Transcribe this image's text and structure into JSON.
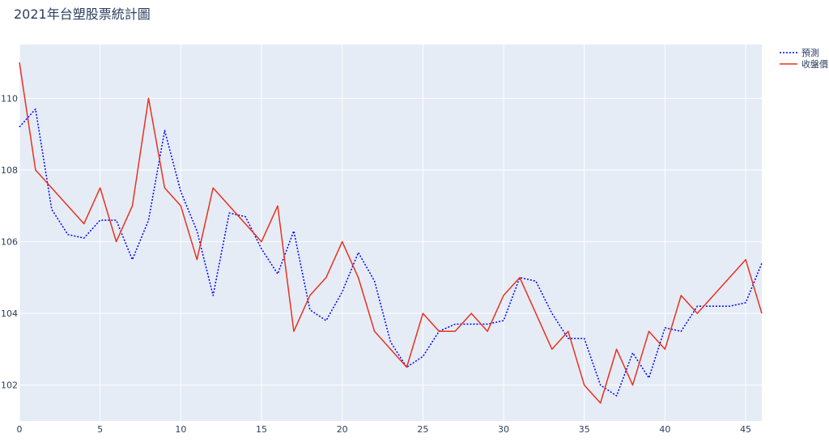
{
  "chart_data": {
    "type": "line",
    "title": "2021年台塑股票統計圖",
    "xlabel": "",
    "ylabel": "",
    "xlim": [
      0,
      46
    ],
    "ylim": [
      101,
      111.5
    ],
    "x_ticks": [
      0,
      5,
      10,
      15,
      20,
      25,
      30,
      35,
      40,
      45
    ],
    "y_ticks": [
      102,
      104,
      106,
      108,
      110
    ],
    "grid": true,
    "legend_position": "top-right",
    "series": [
      {
        "name": "預測",
        "color": "#0000ff",
        "line_style": "dotted",
        "x": [
          0,
          1,
          2,
          3,
          4,
          5,
          6,
          7,
          8,
          9,
          10,
          11,
          12,
          13,
          14,
          15,
          16,
          17,
          18,
          19,
          20,
          21,
          22,
          23,
          24,
          25,
          26,
          27,
          28,
          29,
          30,
          31,
          32,
          33,
          34,
          35,
          36,
          37,
          38,
          39,
          40,
          41,
          42,
          43,
          44,
          45,
          46
        ],
        "values": [
          109.2,
          109.7,
          106.9,
          106.2,
          106.1,
          106.6,
          106.6,
          105.5,
          106.6,
          109.1,
          107.4,
          106.3,
          104.5,
          106.8,
          106.7,
          105.8,
          105.1,
          106.3,
          104.1,
          103.8,
          104.6,
          105.7,
          104.9,
          103.2,
          102.5,
          102.8,
          103.5,
          103.7,
          103.7,
          103.7,
          103.8,
          105.0,
          104.9,
          104.0,
          103.3,
          103.3,
          102.0,
          101.7,
          102.9,
          102.2,
          103.6,
          103.5,
          104.2,
          104.2,
          104.2,
          104.3,
          105.4
        ]
      },
      {
        "name": "收盤價",
        "color": "#e8321e",
        "line_style": "solid",
        "x": [
          0,
          1,
          4,
          5,
          6,
          7,
          8,
          9,
          10,
          11,
          12,
          15,
          16,
          17,
          18,
          19,
          20,
          21,
          22,
          24,
          25,
          26,
          27,
          28,
          29,
          30,
          31,
          33,
          34,
          35,
          36,
          37,
          38,
          39,
          40,
          41,
          42,
          45,
          46
        ],
        "values": [
          111.0,
          108.0,
          106.5,
          107.5,
          106.0,
          107.0,
          110.0,
          107.5,
          107.0,
          105.5,
          107.5,
          106.0,
          107.0,
          103.5,
          104.5,
          105.0,
          106.0,
          105.0,
          103.5,
          102.5,
          104.0,
          103.5,
          103.5,
          104.0,
          103.5,
          104.5,
          105.0,
          103.0,
          103.5,
          102.0,
          101.5,
          103.0,
          102.0,
          103.5,
          103.0,
          104.5,
          104.0,
          105.5,
          104.0
        ]
      }
    ]
  }
}
